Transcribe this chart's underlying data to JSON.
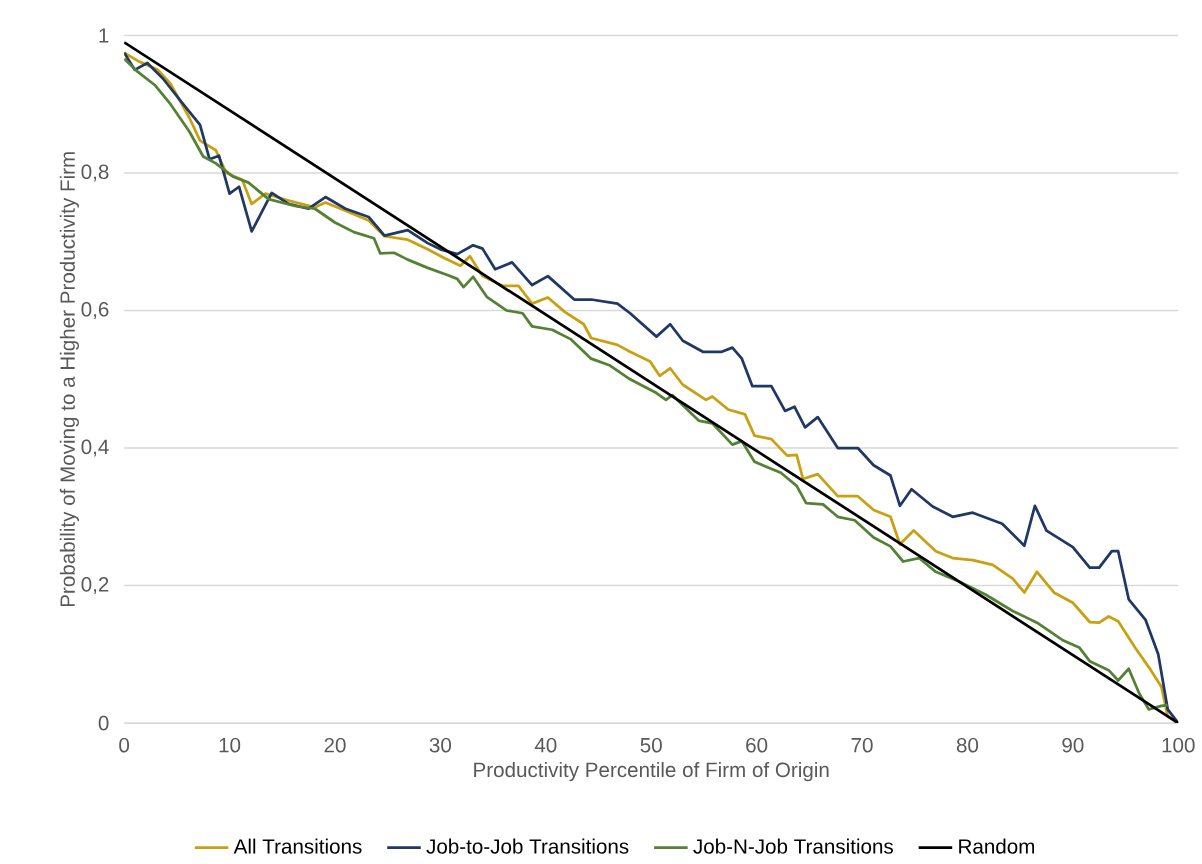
{
  "chart_data": {
    "type": "line",
    "xlabel": "Productivity Percentile of Firm of Origin",
    "ylabel": "Probability of Moving to a Higher Productivity Firm",
    "xlim": [
      0,
      100
    ],
    "xticks": [
      0,
      10,
      20,
      30,
      40,
      50,
      60,
      70,
      80,
      90,
      100
    ],
    "ylim": [
      0,
      1
    ],
    "yticks": [
      0,
      {
        "value": 0.2,
        "label": "0,2"
      },
      {
        "value": 0.4,
        "label": "0,4"
      },
      {
        "value": 0.6,
        "label": "0,6"
      },
      {
        "value": 0.8,
        "label": "0,8"
      },
      1
    ],
    "grid": "y",
    "legend": "bottom",
    "series": [
      {
        "name": "All Transitions",
        "color": "#c9a00f",
        "x": [
          0,
          1.3,
          3.2,
          4.4,
          6.2,
          7.2,
          8.7,
          9.7,
          11.2,
          12.1,
          13.4,
          15.6,
          18.1,
          19.1,
          21,
          23.2,
          24.7,
          26.9,
          28.8,
          30.4,
          31.9,
          32.8,
          34,
          35.9,
          37.4,
          38.7,
          40.2,
          41.8,
          43.6,
          44.3,
          46.8,
          48,
          49.9,
          50.8,
          51.8,
          53,
          55.2,
          55.8,
          57.3,
          58.9,
          59.8,
          61.4,
          62.9,
          63.8,
          64.4,
          65.8,
          67.7,
          69.6,
          71.1,
          72.7,
          73.6,
          74.9,
          77,
          78.6,
          80.5,
          82.4,
          84.3,
          85.4,
          86.6,
          88.2,
          90,
          91.6,
          92.5,
          93.4,
          94.3,
          95.9,
          97.4,
          98.4,
          99,
          100
        ],
        "values": [
          0.975,
          0.963,
          0.95,
          0.93,
          0.88,
          0.847,
          0.833,
          0.8,
          0.79,
          0.755,
          0.77,
          0.76,
          0.75,
          0.757,
          0.745,
          0.731,
          0.708,
          0.703,
          0.689,
          0.676,
          0.665,
          0.679,
          0.65,
          0.636,
          0.636,
          0.61,
          0.619,
          0.598,
          0.58,
          0.56,
          0.55,
          0.54,
          0.526,
          0.505,
          0.516,
          0.492,
          0.47,
          0.475,
          0.456,
          0.449,
          0.418,
          0.413,
          0.389,
          0.39,
          0.355,
          0.362,
          0.33,
          0.33,
          0.31,
          0.3,
          0.26,
          0.28,
          0.25,
          0.24,
          0.237,
          0.23,
          0.21,
          0.19,
          0.22,
          0.19,
          0.175,
          0.147,
          0.146,
          0.155,
          0.148,
          0.11,
          0.077,
          0.053,
          0.01,
          0
        ]
      },
      {
        "name": "Job-to-Job Transitions",
        "color": "#203864",
        "x": [
          0,
          1,
          2.2,
          3.7,
          5.6,
          7.2,
          8.1,
          9,
          10,
          10.9,
          12.1,
          14,
          15.6,
          17.5,
          19.1,
          21,
          23.2,
          24.7,
          26.9,
          28.8,
          30,
          31.6,
          33.1,
          34,
          35.2,
          36.8,
          38.7,
          40.2,
          42.7,
          44.3,
          46.8,
          48,
          50.5,
          51.8,
          53,
          54.9,
          56.7,
          57.7,
          58.6,
          59.6,
          61.4,
          62.7,
          63.6,
          64.6,
          65.8,
          67.7,
          69.6,
          71.1,
          72.7,
          73.6,
          74.7,
          76.7,
          78.6,
          80.5,
          83.3,
          85.4,
          86.4,
          87.5,
          90,
          91.6,
          92.5,
          93.7,
          94.3,
          95.3,
          96.9,
          98.1,
          99,
          100
        ],
        "values": [
          0.975,
          0.95,
          0.96,
          0.937,
          0.9,
          0.87,
          0.82,
          0.825,
          0.77,
          0.78,
          0.715,
          0.771,
          0.755,
          0.748,
          0.765,
          0.748,
          0.736,
          0.709,
          0.717,
          0.698,
          0.689,
          0.682,
          0.695,
          0.69,
          0.66,
          0.67,
          0.637,
          0.65,
          0.616,
          0.616,
          0.61,
          0.596,
          0.562,
          0.58,
          0.556,
          0.54,
          0.54,
          0.546,
          0.53,
          0.49,
          0.49,
          0.454,
          0.46,
          0.43,
          0.445,
          0.4,
          0.4,
          0.375,
          0.36,
          0.316,
          0.34,
          0.315,
          0.3,
          0.306,
          0.29,
          0.258,
          0.316,
          0.28,
          0.256,
          0.226,
          0.226,
          0.25,
          0.25,
          0.18,
          0.15,
          0.1,
          0.02,
          0
        ]
      },
      {
        "name": "Job-N-Job Transitions",
        "color": "#548235",
        "x": [
          0,
          1.3,
          2.9,
          4.4,
          6.2,
          7.5,
          8.7,
          10.3,
          11.8,
          13.7,
          16.2,
          18.1,
          20,
          21.8,
          23.7,
          24.3,
          25.6,
          26.9,
          28.8,
          30.6,
          31.6,
          32.2,
          33.1,
          34.4,
          36.3,
          37.8,
          38.7,
          40.6,
          42.4,
          44.3,
          46.1,
          48,
          50.5,
          51.4,
          52,
          54.5,
          55.8,
          57.7,
          58.6,
          59.8,
          62.3,
          63.8,
          64.7,
          66.3,
          67.7,
          69.3,
          71.1,
          72.7,
          73.9,
          75.4,
          77,
          79.2,
          81.7,
          84.3,
          86.6,
          89.1,
          90.6,
          91.6,
          93.4,
          94.3,
          95.3,
          96.3,
          97.2,
          98.4,
          99
        ],
        "values": [
          0.966,
          0.947,
          0.928,
          0.9,
          0.86,
          0.824,
          0.814,
          0.795,
          0.786,
          0.762,
          0.752,
          0.748,
          0.728,
          0.714,
          0.705,
          0.683,
          0.684,
          0.674,
          0.662,
          0.652,
          0.646,
          0.634,
          0.649,
          0.62,
          0.6,
          0.596,
          0.577,
          0.572,
          0.558,
          0.53,
          0.52,
          0.5,
          0.48,
          0.47,
          0.477,
          0.44,
          0.436,
          0.405,
          0.41,
          0.38,
          0.364,
          0.345,
          0.32,
          0.318,
          0.3,
          0.295,
          0.27,
          0.257,
          0.235,
          0.24,
          0.22,
          0.206,
          0.187,
          0.163,
          0.146,
          0.12,
          0.11,
          0.09,
          0.077,
          0.062,
          0.079,
          0.043,
          0.02,
          0.025,
          0.026
        ]
      },
      {
        "name": "Random",
        "color": "#000000",
        "x": [
          0,
          100
        ],
        "values": [
          0.99,
          0
        ]
      }
    ]
  }
}
